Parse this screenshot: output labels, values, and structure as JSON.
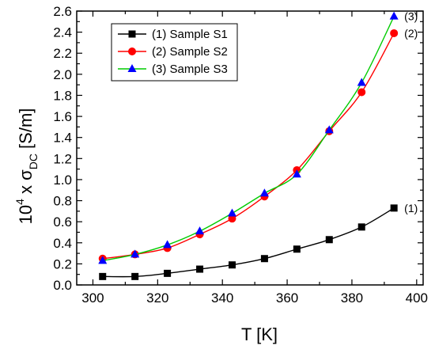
{
  "chart_data": {
    "type": "line",
    "xlabel": "T [K]",
    "ylabel": {
      "prefix": "10",
      "exponent": "4",
      "middle": " x σ",
      "subscript": "DC",
      "suffix": " [S/m]"
    },
    "xlim": [
      295,
      402
    ],
    "ylim": [
      0,
      2.6
    ],
    "xticks": [
      300,
      320,
      340,
      360,
      380,
      400
    ],
    "yticks": [
      0.0,
      0.2,
      0.4,
      0.6,
      0.8,
      1.0,
      1.2,
      1.4,
      1.6,
      1.8,
      2.0,
      2.2,
      2.4,
      2.6
    ],
    "legend_position": "top-left",
    "grid": false,
    "series": [
      {
        "name": "(1) Sample S1",
        "label": "(1)",
        "color": "#000000",
        "marker": "square",
        "x": [
          303,
          313,
          323,
          333,
          343,
          353,
          363,
          373,
          383,
          393
        ],
        "y": [
          0.08,
          0.08,
          0.11,
          0.15,
          0.19,
          0.25,
          0.34,
          0.43,
          0.55,
          0.73
        ]
      },
      {
        "name": "(2) Sample S2",
        "label": "(2)",
        "color": "#ff0000",
        "marker": "circle",
        "x": [
          303,
          313,
          323,
          333,
          343,
          353,
          363,
          373,
          383,
          393
        ],
        "y": [
          0.25,
          0.29,
          0.35,
          0.48,
          0.63,
          0.84,
          1.09,
          1.46,
          1.83,
          2.39
        ]
      },
      {
        "name": "(3) Sample S3",
        "label": "(3)",
        "color": "#00cc00",
        "marker_color": "#0000ff",
        "marker": "triangle",
        "x": [
          303,
          313,
          323,
          333,
          343,
          353,
          363,
          373,
          383,
          393
        ],
        "y": [
          0.23,
          0.29,
          0.38,
          0.51,
          0.68,
          0.87,
          1.05,
          1.47,
          1.92,
          2.55
        ]
      }
    ]
  }
}
